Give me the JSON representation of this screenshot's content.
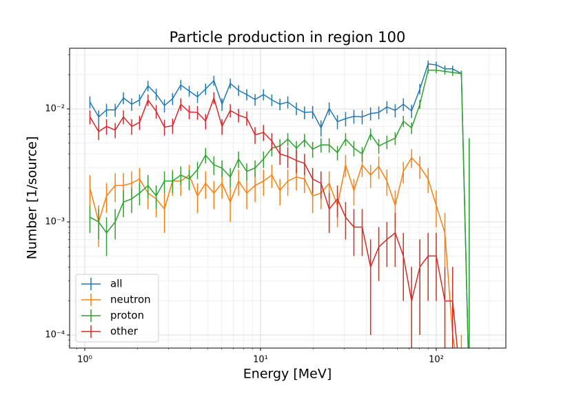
{
  "chart_data": {
    "type": "errorbar-line",
    "title": "Particle production in region 100",
    "x_label": "Energy [MeV]",
    "y_label": "Number [1/source]",
    "log_x": true,
    "log_y": true,
    "grid": true,
    "legend_position": "lower left",
    "xlim": [
      0.82,
      249
    ],
    "ylim": [
      7.66e-05,
      0.0344
    ],
    "xticks": [
      {
        "value": 1,
        "label": "10⁰"
      },
      {
        "value": 10,
        "label": "10¹"
      },
      {
        "value": 100,
        "label": "10²"
      }
    ],
    "yticks": [
      {
        "value": 0.0001,
        "label": "10⁻⁴"
      },
      {
        "value": 0.001,
        "label": "10⁻³"
      },
      {
        "value": 0.01,
        "label": "10⁻²"
      }
    ],
    "x_minor_ticks": [
      0.9,
      2,
      3,
      4,
      5,
      6,
      7,
      8,
      9,
      20,
      30,
      40,
      50,
      60,
      70,
      80,
      90,
      200
    ],
    "y_minor_ticks": [
      8e-05,
      9e-05,
      0.0002,
      0.0003,
      0.0004,
      0.0005,
      0.0006,
      0.0007,
      0.0008,
      0.0009,
      0.002,
      0.003,
      0.004,
      0.005,
      0.006,
      0.007,
      0.008,
      0.009,
      0.02,
      0.03
    ],
    "x": [
      1.07,
      1.2,
      1.33,
      1.49,
      1.66,
      1.85,
      2.05,
      2.29,
      2.55,
      2.84,
      3.16,
      3.52,
      3.93,
      4.38,
      4.87,
      5.43,
      6.04,
      6.73,
      7.5,
      8.35,
      9.31,
      10.4,
      11.6,
      12.9,
      14.3,
      16.0,
      17.8,
      19.8,
      22.1,
      24.6,
      27.4,
      30.5,
      34.0,
      37.9,
      42.3,
      47.1,
      52.4,
      58.4,
      65.0,
      72.4,
      80.7,
      89.9,
      100,
      112,
      124,
      139,
      154
    ],
    "series": [
      {
        "name": "all",
        "color": "#1f77b4",
        "values": [
          0.0115,
          0.0085,
          0.0098,
          0.0098,
          0.0125,
          0.011,
          0.012,
          0.016,
          0.0135,
          0.0107,
          0.0123,
          0.0163,
          0.0144,
          0.0128,
          0.015,
          0.0178,
          0.011,
          0.0168,
          0.0146,
          0.0134,
          0.0121,
          0.0134,
          0.012,
          0.011,
          0.0115,
          0.0101,
          0.0093,
          0.0094,
          0.0068,
          0.0101,
          0.0077,
          0.0082,
          0.0086,
          0.0085,
          0.0091,
          0.0093,
          0.0104,
          0.0097,
          0.011,
          0.0096,
          0.015,
          0.025,
          0.0245,
          0.0226,
          0.0226,
          0.0205,
          0
        ],
        "errors": [
          0.0014,
          0.0012,
          0.0013,
          0.0013,
          0.0015,
          0.0014,
          0.0014,
          0.0017,
          0.0016,
          0.0014,
          0.0015,
          0.0017,
          0.0016,
          0.0015,
          0.0017,
          0.0018,
          0.0014,
          0.0017,
          0.0016,
          0.0015,
          0.0014,
          0.0015,
          0.0014,
          0.0013,
          0.0014,
          0.0013,
          0.0012,
          0.0012,
          0.0011,
          0.0013,
          0.0011,
          0.0012,
          0.0012,
          0.0012,
          0.0012,
          0.0012,
          0.0013,
          0.0013,
          0.0014,
          0.0013,
          0.0016,
          0.0018,
          0.0017,
          0.0016,
          0.0015,
          0.0012,
          0.0055
        ]
      },
      {
        "name": "neutron",
        "color": "#ff7f0e",
        "values": [
          0.002,
          0.001,
          0.0017,
          0.0021,
          0.0021,
          0.0022,
          0.0024,
          0.0018,
          0.0016,
          0.0013,
          0.0023,
          0.0023,
          0.0026,
          0.0017,
          0.0022,
          0.0018,
          0.0022,
          0.0015,
          0.0023,
          0.0018,
          0.0021,
          0.0023,
          0.0026,
          0.0019,
          0.0023,
          0.0025,
          0.0024,
          0.0017,
          0.0018,
          0.0022,
          0.0014,
          0.0032,
          0.0019,
          0.0032,
          0.0026,
          0.0031,
          0.0023,
          0.0014,
          0.0028,
          0.0037,
          0.0031,
          0.0024,
          0.0014,
          0.0008,
          0.0001,
          0,
          0
        ],
        "errors": [
          0.0006,
          0.0004,
          0.0005,
          0.0006,
          0.0006,
          0.0006,
          0.0006,
          0.0005,
          0.0005,
          0.0005,
          0.0006,
          0.0006,
          0.0006,
          0.0005,
          0.0006,
          0.0005,
          0.0006,
          0.0005,
          0.0006,
          0.0005,
          0.0006,
          0.0006,
          0.0006,
          0.0005,
          0.0006,
          0.0006,
          0.0006,
          0.0005,
          0.0005,
          0.0006,
          0.0005,
          0.0007,
          0.0005,
          0.0007,
          0.0006,
          0.0007,
          0.0006,
          0.0005,
          0.0006,
          0.0007,
          0.0007,
          0.0006,
          0.0005,
          0.0004,
          0.0001,
          0.0001,
          0
        ]
      },
      {
        "name": "proton",
        "color": "#2ca02c",
        "values": [
          0.0011,
          0.001,
          0.0008,
          0.001,
          0.0015,
          0.0016,
          0.0018,
          0.0021,
          0.0017,
          0.0023,
          0.0023,
          0.0026,
          0.0024,
          0.0029,
          0.0039,
          0.0032,
          0.003,
          0.0025,
          0.0036,
          0.0028,
          0.003,
          0.0036,
          0.0045,
          0.0047,
          0.0054,
          0.0045,
          0.0053,
          0.0044,
          0.0048,
          0.0048,
          0.0041,
          0.0054,
          0.0045,
          0.004,
          0.006,
          0.0047,
          0.0051,
          0.0055,
          0.0078,
          0.0068,
          0.011,
          0.022,
          0.022,
          0.0215,
          0.021,
          0.0205,
          0
        ],
        "errors": [
          0.0003,
          0.0003,
          0.0003,
          0.0003,
          0.0004,
          0.0004,
          0.0004,
          0.0005,
          0.0004,
          0.0005,
          0.0005,
          0.0005,
          0.0005,
          0.0005,
          0.0006,
          0.0006,
          0.0005,
          0.0005,
          0.0006,
          0.0005,
          0.0005,
          0.0006,
          0.0007,
          0.0007,
          0.0007,
          0.0007,
          0.0007,
          0.0007,
          0.0007,
          0.0007,
          0.0006,
          0.0007,
          0.0007,
          0.0006,
          0.0007,
          0.0007,
          0.0007,
          0.0007,
          0.0009,
          0.0008,
          0.001,
          0.0014,
          0.0014,
          0.0014,
          0.0014,
          0.0013,
          0.0055
        ]
      },
      {
        "name": "other",
        "color": "#d62728",
        "values": [
          0.0085,
          0.0063,
          0.007,
          0.0065,
          0.0085,
          0.007,
          0.0076,
          0.012,
          0.0095,
          0.0069,
          0.0071,
          0.011,
          0.0094,
          0.0093,
          0.0078,
          0.0125,
          0.007,
          0.0097,
          0.0088,
          0.0083,
          0.0059,
          0.0062,
          0.0052,
          0.004,
          0.0038,
          0.0035,
          0.0033,
          0.0024,
          0.0022,
          0.0013,
          0.0016,
          0.0011,
          0.0009,
          0.0009,
          0.0004,
          0.0006,
          0.0007,
          0.0008,
          0.0005,
          0.0002,
          0.0004,
          0.0005,
          0.0005,
          0.0002,
          0.0002,
          0,
          0
        ],
        "errors": [
          0.0012,
          0.001,
          0.0011,
          0.001,
          0.0012,
          0.0011,
          0.0011,
          0.0014,
          0.0013,
          0.0011,
          0.0011,
          0.0014,
          0.0013,
          0.0013,
          0.0012,
          0.0015,
          0.0011,
          0.0013,
          0.0012,
          0.0012,
          0.001,
          0.001,
          0.0009,
          0.0008,
          0.0008,
          0.0008,
          0.0007,
          0.0006,
          0.0006,
          0.0005,
          0.0005,
          0.0004,
          0.0004,
          0.0004,
          0.0003,
          0.0003,
          0.0003,
          0.0004,
          0.0003,
          0.0002,
          0.0003,
          0.0003,
          0.0003,
          0.0002,
          0.0002,
          0,
          0
        ]
      }
    ]
  }
}
